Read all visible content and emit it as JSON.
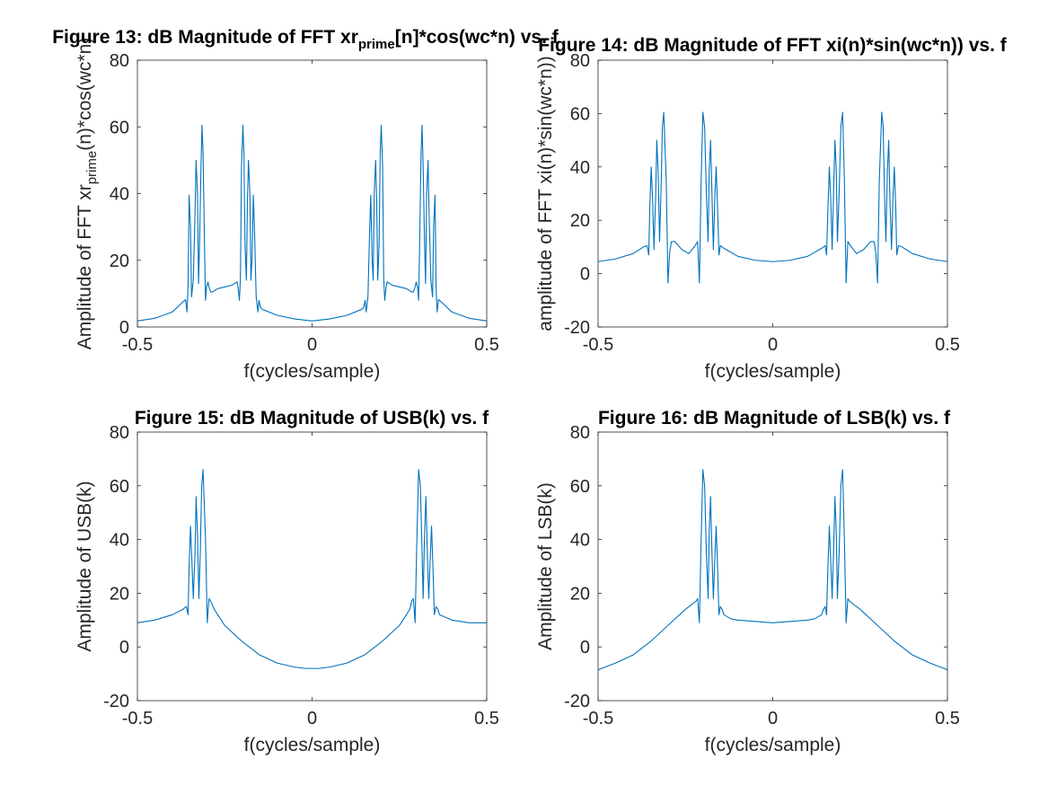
{
  "figure": {
    "line_color": "#0072BD",
    "axes_color": "#262626",
    "background": "#ffffff"
  },
  "chart_data": [
    {
      "type": "line",
      "title": "Figure 13: dB Magnitude of FFT xr[n]*cos(wc*n) vs. f",
      "title_parts": [
        {
          "text": "Figure 13: dB Magnitude of FFT xr",
          "sub": false
        },
        {
          "text": "prime",
          "sub": true
        },
        {
          "text": "[n]*cos(wc*n) vs. f",
          "sub": false
        }
      ],
      "xlabel": "f(cycles/sample)",
      "ylabel": "Amplitude of FFT xr(n)*cos(wc*n)",
      "ylabel_parts": [
        {
          "text": "Amplitude of FFT xr",
          "sub": false
        },
        {
          "text": "prime",
          "sub": true
        },
        {
          "text": "(n)*cos(wc*n)",
          "sub": false
        }
      ],
      "xlim": [
        -0.5,
        0.5
      ],
      "ylim": [
        0,
        80
      ],
      "xticks": [
        -0.5,
        0,
        0.5
      ],
      "yticks": [
        0,
        20,
        40,
        60,
        80
      ],
      "xticklabels": [
        "-0.5",
        "0",
        "0.5"
      ],
      "yticklabels": [
        "0",
        "20",
        "40",
        "60",
        "80"
      ],
      "grid": false,
      "x": [
        -0.5,
        -0.45,
        -0.4,
        -0.37,
        -0.362,
        -0.358,
        -0.355,
        -0.352,
        -0.348,
        -0.345,
        -0.34,
        -0.335,
        -0.332,
        -0.328,
        -0.325,
        -0.322,
        -0.318,
        -0.315,
        -0.312,
        -0.308,
        -0.305,
        -0.302,
        -0.298,
        -0.295,
        -0.29,
        -0.285,
        -0.27,
        -0.25,
        -0.23,
        -0.215,
        -0.212,
        -0.208,
        -0.205,
        -0.202,
        -0.198,
        -0.195,
        -0.192,
        -0.188,
        -0.185,
        -0.182,
        -0.178,
        -0.175,
        -0.172,
        -0.168,
        -0.165,
        -0.16,
        -0.155,
        -0.152,
        -0.148,
        -0.145,
        -0.14,
        -0.1,
        -0.05,
        0,
        0.05,
        0.1,
        0.14,
        0.145,
        0.148,
        0.152,
        0.155,
        0.16,
        0.165,
        0.168,
        0.172,
        0.175,
        0.178,
        0.182,
        0.185,
        0.188,
        0.192,
        0.195,
        0.198,
        0.202,
        0.205,
        0.208,
        0.212,
        0.215,
        0.23,
        0.25,
        0.27,
        0.285,
        0.29,
        0.295,
        0.298,
        0.302,
        0.305,
        0.308,
        0.312,
        0.315,
        0.318,
        0.322,
        0.325,
        0.328,
        0.332,
        0.335,
        0.34,
        0.345,
        0.348,
        0.352,
        0.355,
        0.358,
        0.362,
        0.37,
        0.4,
        0.45,
        0.5
      ],
      "y": [
        1.8,
        2.6,
        4.5,
        7.5,
        8.2,
        4.5,
        12,
        39.5,
        30,
        9,
        14,
        34,
        50,
        40,
        13,
        25,
        48,
        60.5,
        52,
        25,
        8,
        12,
        13.5,
        12,
        10.5,
        10.5,
        11.5,
        12,
        12.5,
        13.5,
        12,
        8,
        15,
        48,
        60.5,
        52,
        25,
        14,
        38,
        50,
        40,
        14,
        20,
        39.5,
        30,
        9,
        4.5,
        8,
        6,
        5.5,
        5.2,
        3.5,
        2.4,
        1.8,
        2.4,
        3.5,
        5.2,
        5.5,
        6,
        8,
        4.5,
        9,
        30,
        39.5,
        20,
        14,
        40,
        50,
        38,
        14,
        25,
        52,
        60.5,
        48,
        15,
        8,
        12,
        13.5,
        12.5,
        12,
        11.5,
        10.5,
        10.5,
        12,
        13.5,
        12,
        8,
        25,
        52,
        60.5,
        48,
        25,
        13,
        40,
        50,
        34,
        14,
        9,
        30,
        39.5,
        12,
        4.5,
        8.2,
        7.5,
        4.5,
        2.6,
        1.8
      ]
    },
    {
      "type": "line",
      "title": "Figure 14: dB Magnitude of FFT xi(n)*sin(wc*n)) vs. f",
      "xlabel": "f(cycles/sample)",
      "ylabel": "amplitude of FFT xi(n)*sin(wc*n))",
      "xlim": [
        -0.5,
        0.5
      ],
      "ylim": [
        -20,
        80
      ],
      "xticks": [
        -0.5,
        0,
        0.5
      ],
      "yticks": [
        -20,
        0,
        20,
        40,
        60,
        80
      ],
      "xticklabels": [
        "-0.5",
        "0",
        "0.5"
      ],
      "yticklabels": [
        "-20",
        "0",
        "20",
        "40",
        "60",
        "80"
      ],
      "grid": false,
      "x": [
        -0.5,
        -0.45,
        -0.4,
        -0.37,
        -0.36,
        -0.355,
        -0.352,
        -0.348,
        -0.344,
        -0.34,
        -0.335,
        -0.332,
        -0.328,
        -0.324,
        -0.32,
        -0.316,
        -0.312,
        -0.305,
        -0.3,
        -0.295,
        -0.29,
        -0.28,
        -0.26,
        -0.24,
        -0.225,
        -0.215,
        -0.21,
        -0.205,
        -0.2,
        -0.195,
        -0.19,
        -0.185,
        -0.182,
        -0.178,
        -0.174,
        -0.17,
        -0.166,
        -0.162,
        -0.158,
        -0.154,
        -0.15,
        -0.145,
        -0.14,
        -0.1,
        -0.05,
        0,
        0.05,
        0.1,
        0.14,
        0.145,
        0.15,
        0.154,
        0.158,
        0.162,
        0.166,
        0.17,
        0.174,
        0.178,
        0.182,
        0.185,
        0.19,
        0.195,
        0.2,
        0.205,
        0.21,
        0.215,
        0.225,
        0.24,
        0.26,
        0.28,
        0.29,
        0.295,
        0.3,
        0.305,
        0.312,
        0.316,
        0.32,
        0.324,
        0.328,
        0.332,
        0.335,
        0.34,
        0.344,
        0.348,
        0.352,
        0.355,
        0.36,
        0.37,
        0.4,
        0.45,
        0.5
      ],
      "y": [
        4.5,
        5.5,
        7.5,
        10,
        10.5,
        7,
        25,
        40,
        28,
        9,
        30,
        50,
        38,
        12,
        30,
        55,
        60.5,
        35,
        -3.5,
        8,
        12,
        12,
        9,
        7.5,
        10,
        12,
        -3.5,
        35,
        60.5,
        55,
        30,
        12,
        38,
        50,
        30,
        9,
        28,
        40,
        25,
        7,
        10.5,
        10,
        9.5,
        6.5,
        5,
        4.5,
        5,
        6.5,
        9.5,
        10,
        10.5,
        7,
        25,
        40,
        28,
        9,
        30,
        50,
        38,
        12,
        30,
        55,
        60.5,
        35,
        -3.5,
        12,
        10,
        7.5,
        9,
        12,
        12,
        8,
        -3.5,
        35,
        60.5,
        55,
        30,
        12,
        38,
        50,
        30,
        9,
        28,
        40,
        25,
        7,
        10.5,
        10,
        7.5,
        5.5,
        4.5
      ]
    },
    {
      "type": "line",
      "title": "Figure 15: dB Magnitude of USB(k) vs. f",
      "xlabel": "f(cycles/sample)",
      "ylabel": "Amplitude of USB(k)",
      "xlim": [
        -0.5,
        0.5
      ],
      "ylim": [
        -20,
        80
      ],
      "xticks": [
        -0.5,
        0,
        0.5
      ],
      "yticks": [
        -20,
        0,
        20,
        40,
        60,
        80
      ],
      "xticklabels": [
        "-0.5",
        "0",
        "0.5"
      ],
      "yticklabels": [
        "-20",
        "0",
        "20",
        "40",
        "60",
        "80"
      ],
      "grid": false,
      "x": [
        -0.5,
        -0.45,
        -0.4,
        -0.37,
        -0.36,
        -0.355,
        -0.352,
        -0.348,
        -0.344,
        -0.34,
        -0.335,
        -0.332,
        -0.328,
        -0.324,
        -0.32,
        -0.316,
        -0.312,
        -0.305,
        -0.3,
        -0.295,
        -0.29,
        -0.28,
        -0.25,
        -0.2,
        -0.15,
        -0.1,
        -0.05,
        -0.02,
        0,
        0.02,
        0.05,
        0.1,
        0.15,
        0.2,
        0.25,
        0.28,
        0.285,
        0.29,
        0.295,
        0.3,
        0.305,
        0.31,
        0.315,
        0.318,
        0.322,
        0.326,
        0.33,
        0.334,
        0.338,
        0.342,
        0.346,
        0.35,
        0.355,
        0.36,
        0.365,
        0.4,
        0.45,
        0.5
      ],
      "y": [
        9,
        10,
        12,
        14,
        15,
        12,
        30,
        45,
        32,
        18,
        35,
        56,
        42,
        18,
        35,
        60,
        66,
        40,
        9,
        18,
        17,
        14,
        8,
        2,
        -3,
        -6,
        -7.5,
        -8,
        -8,
        -8,
        -7.5,
        -6,
        -3,
        2,
        8,
        14,
        17,
        18,
        9,
        40,
        66,
        60,
        35,
        18,
        42,
        56,
        35,
        18,
        32,
        45,
        30,
        12,
        15,
        14,
        12,
        10,
        9,
        9
      ],
      "ylabel_unused": ""
    },
    {
      "type": "line",
      "title": "Figure 16: dB Magnitude of LSB(k) vs. f",
      "xlabel": "f(cycles/sample)",
      "ylabel": "Amplitude of LSB(k)",
      "xlim": [
        -0.5,
        0.5
      ],
      "ylim": [
        -20,
        80
      ],
      "xticks": [
        -0.5,
        0,
        0.5
      ],
      "yticks": [
        -20,
        0,
        20,
        40,
        60,
        80
      ],
      "xticklabels": [
        "-0.5",
        "0",
        "0.5"
      ],
      "yticklabels": [
        "-20",
        "0",
        "20",
        "40",
        "60",
        "80"
      ],
      "grid": false,
      "x": [
        -0.5,
        -0.45,
        -0.4,
        -0.35,
        -0.3,
        -0.25,
        -0.22,
        -0.215,
        -0.21,
        -0.205,
        -0.2,
        -0.195,
        -0.19,
        -0.185,
        -0.182,
        -0.178,
        -0.174,
        -0.17,
        -0.166,
        -0.162,
        -0.158,
        -0.154,
        -0.15,
        -0.145,
        -0.14,
        -0.12,
        -0.1,
        -0.05,
        0,
        0.05,
        0.1,
        0.12,
        0.14,
        0.145,
        0.15,
        0.154,
        0.158,
        0.162,
        0.166,
        0.17,
        0.174,
        0.178,
        0.182,
        0.185,
        0.19,
        0.195,
        0.2,
        0.205,
        0.21,
        0.215,
        0.22,
        0.25,
        0.3,
        0.35,
        0.4,
        0.45,
        0.5
      ],
      "y": [
        -8.5,
        -6,
        -3,
        2,
        8,
        14,
        17,
        18,
        9,
        40,
        66,
        60,
        35,
        18,
        42,
        56,
        35,
        18,
        32,
        45,
        30,
        12,
        15,
        14,
        12,
        10.5,
        10,
        9.5,
        9,
        9.5,
        10,
        10.5,
        12,
        14,
        15,
        12,
        30,
        45,
        32,
        18,
        35,
        56,
        42,
        18,
        35,
        60,
        66,
        40,
        9,
        18,
        17,
        14,
        8,
        2,
        -3,
        -6,
        -8.5
      ]
    }
  ]
}
